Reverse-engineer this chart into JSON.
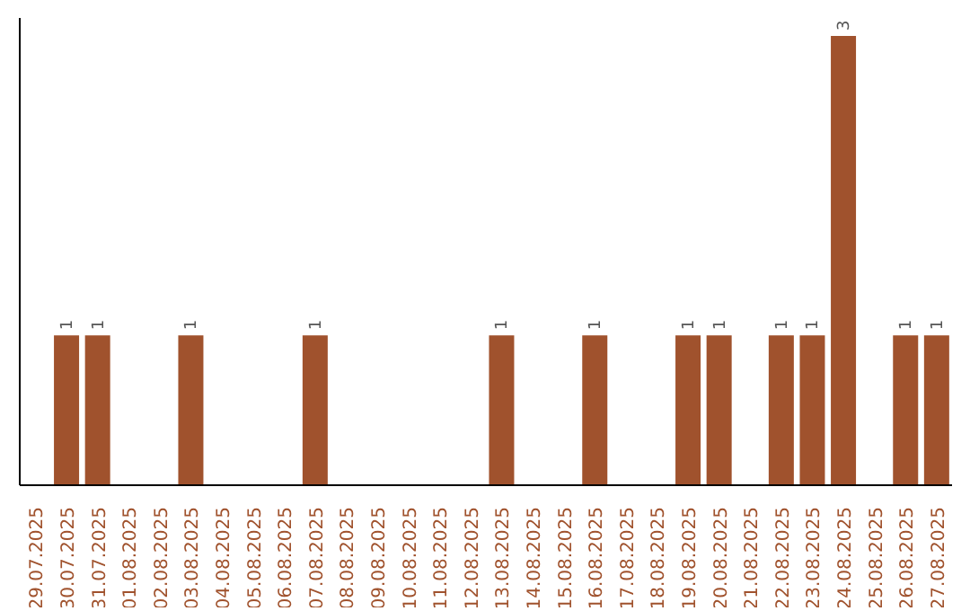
{
  "chart_data": {
    "type": "bar",
    "categories": [
      "29.07.2025",
      "30.07.2025",
      "31.07.2025",
      "01.08.2025",
      "02.08.2025",
      "03.08.2025",
      "04.08.2025",
      "05.08.2025",
      "06.08.2025",
      "07.08.2025",
      "08.08.2025",
      "09.08.2025",
      "10.08.2025",
      "11.08.2025",
      "12.08.2025",
      "13.08.2025",
      "14.08.2025",
      "15.08.2025",
      "16.08.2025",
      "17.08.2025",
      "18.08.2025",
      "19.08.2025",
      "20.08.2025",
      "21.08.2025",
      "22.08.2025",
      "23.08.2025",
      "24.08.2025",
      "25.08.2025",
      "26.08.2025",
      "27.08.2025"
    ],
    "values": [
      0,
      1,
      1,
      0,
      0,
      1,
      0,
      0,
      0,
      1,
      0,
      0,
      0,
      0,
      0,
      1,
      0,
      0,
      1,
      0,
      0,
      1,
      1,
      0,
      1,
      1,
      3,
      0,
      1,
      1
    ],
    "value_labels": [
      null,
      "1",
      "1",
      null,
      null,
      "1",
      null,
      null,
      null,
      "1",
      null,
      null,
      null,
      null,
      null,
      "1",
      null,
      null,
      "1",
      null,
      null,
      "1",
      "1",
      null,
      "1",
      "1",
      "3",
      null,
      "1",
      "1"
    ],
    "color": "#a0522d"
  }
}
